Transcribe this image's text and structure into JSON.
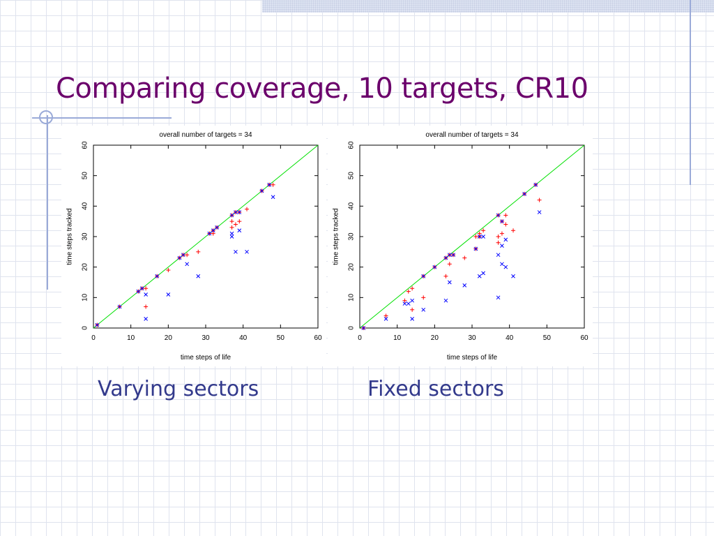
{
  "slide": {
    "title": "Comparing coverage, 10 targets, CR10",
    "caption_left": "Varying sectors",
    "caption_right": "Fixed sectors"
  },
  "colors": {
    "title": "#6b006b",
    "caption": "#333a8c",
    "diagonal": "#00e000",
    "series_plus": "#ff0000",
    "series_x": "#0000ff"
  },
  "chart_data": [
    {
      "type": "scatter",
      "title": "overall number of targets = 34",
      "xlabel": "time steps of life",
      "ylabel": "time steps tracked",
      "xlim": [
        0,
        60
      ],
      "ylim": [
        0,
        60
      ],
      "xticks": [
        0,
        10,
        20,
        30,
        40,
        50,
        60
      ],
      "yticks": [
        0,
        10,
        20,
        30,
        40,
        50,
        60
      ],
      "grid": false,
      "legend": "none",
      "reference_line": [
        [
          0,
          0
        ],
        [
          60,
          60
        ]
      ],
      "series": [
        {
          "marker": "plus",
          "color": "#ff0000",
          "points": [
            [
              1,
              1
            ],
            [
              7,
              7
            ],
            [
              12,
              12
            ],
            [
              13,
              13
            ],
            [
              14,
              13
            ],
            [
              14,
              7
            ],
            [
              17,
              17
            ],
            [
              20,
              19
            ],
            [
              23,
              23
            ],
            [
              24,
              24
            ],
            [
              25,
              24
            ],
            [
              28,
              25
            ],
            [
              31,
              31
            ],
            [
              32,
              31
            ],
            [
              32,
              32
            ],
            [
              33,
              33
            ],
            [
              37,
              37
            ],
            [
              37,
              35
            ],
            [
              37,
              33
            ],
            [
              38,
              38
            ],
            [
              38,
              34
            ],
            [
              39,
              38
            ],
            [
              39,
              35
            ],
            [
              41,
              39
            ],
            [
              45,
              45
            ],
            [
              47,
              47
            ],
            [
              48,
              47
            ]
          ]
        },
        {
          "marker": "x",
          "color": "#0000ff",
          "points": [
            [
              1,
              1
            ],
            [
              7,
              7
            ],
            [
              12,
              12
            ],
            [
              13,
              13
            ],
            [
              14,
              11
            ],
            [
              14,
              3
            ],
            [
              17,
              17
            ],
            [
              20,
              11
            ],
            [
              23,
              23
            ],
            [
              24,
              24
            ],
            [
              25,
              21
            ],
            [
              28,
              17
            ],
            [
              31,
              31
            ],
            [
              32,
              32
            ],
            [
              33,
              33
            ],
            [
              37,
              37
            ],
            [
              37,
              31
            ],
            [
              37,
              30
            ],
            [
              38,
              38
            ],
            [
              38,
              25
            ],
            [
              39,
              38
            ],
            [
              39,
              32
            ],
            [
              41,
              25
            ],
            [
              45,
              45
            ],
            [
              47,
              47
            ],
            [
              48,
              43
            ]
          ]
        }
      ]
    },
    {
      "type": "scatter",
      "title": "overall number of targets = 34",
      "xlabel": "time steps of life",
      "ylabel": "time steps tracked",
      "xlim": [
        0,
        60
      ],
      "ylim": [
        0,
        60
      ],
      "xticks": [
        0,
        10,
        20,
        30,
        40,
        50,
        60
      ],
      "yticks": [
        0,
        10,
        20,
        30,
        40,
        50,
        60
      ],
      "grid": false,
      "legend": "none",
      "reference_line": [
        [
          0,
          0
        ],
        [
          60,
          60
        ]
      ],
      "series": [
        {
          "marker": "plus",
          "color": "#ff0000",
          "points": [
            [
              1,
              0
            ],
            [
              7,
              4
            ],
            [
              12,
              9
            ],
            [
              13,
              12
            ],
            [
              14,
              13
            ],
            [
              14,
              6
            ],
            [
              17,
              17
            ],
            [
              17,
              10
            ],
            [
              20,
              20
            ],
            [
              23,
              23
            ],
            [
              23,
              17
            ],
            [
              24,
              21
            ],
            [
              24,
              24
            ],
            [
              25,
              24
            ],
            [
              28,
              23
            ],
            [
              31,
              26
            ],
            [
              31,
              30
            ],
            [
              32,
              31
            ],
            [
              32,
              30
            ],
            [
              33,
              32
            ],
            [
              37,
              37
            ],
            [
              37,
              30
            ],
            [
              37,
              28
            ],
            [
              38,
              35
            ],
            [
              38,
              31
            ],
            [
              39,
              37
            ],
            [
              39,
              34
            ],
            [
              41,
              32
            ],
            [
              44,
              44
            ],
            [
              47,
              47
            ],
            [
              48,
              42
            ]
          ]
        },
        {
          "marker": "x",
          "color": "#0000ff",
          "points": [
            [
              1,
              0
            ],
            [
              7,
              3
            ],
            [
              12,
              8
            ],
            [
              13,
              8
            ],
            [
              14,
              9
            ],
            [
              14,
              3
            ],
            [
              17,
              17
            ],
            [
              17,
              6
            ],
            [
              20,
              20
            ],
            [
              23,
              23
            ],
            [
              23,
              9
            ],
            [
              24,
              15
            ],
            [
              24,
              24
            ],
            [
              25,
              24
            ],
            [
              28,
              14
            ],
            [
              31,
              26
            ],
            [
              32,
              30
            ],
            [
              32,
              17
            ],
            [
              33,
              30
            ],
            [
              33,
              18
            ],
            [
              37,
              37
            ],
            [
              37,
              24
            ],
            [
              37,
              10
            ],
            [
              38,
              35
            ],
            [
              38,
              27
            ],
            [
              38,
              21
            ],
            [
              39,
              29
            ],
            [
              39,
              20
            ],
            [
              41,
              17
            ],
            [
              44,
              44
            ],
            [
              47,
              47
            ],
            [
              48,
              38
            ]
          ]
        }
      ]
    }
  ]
}
